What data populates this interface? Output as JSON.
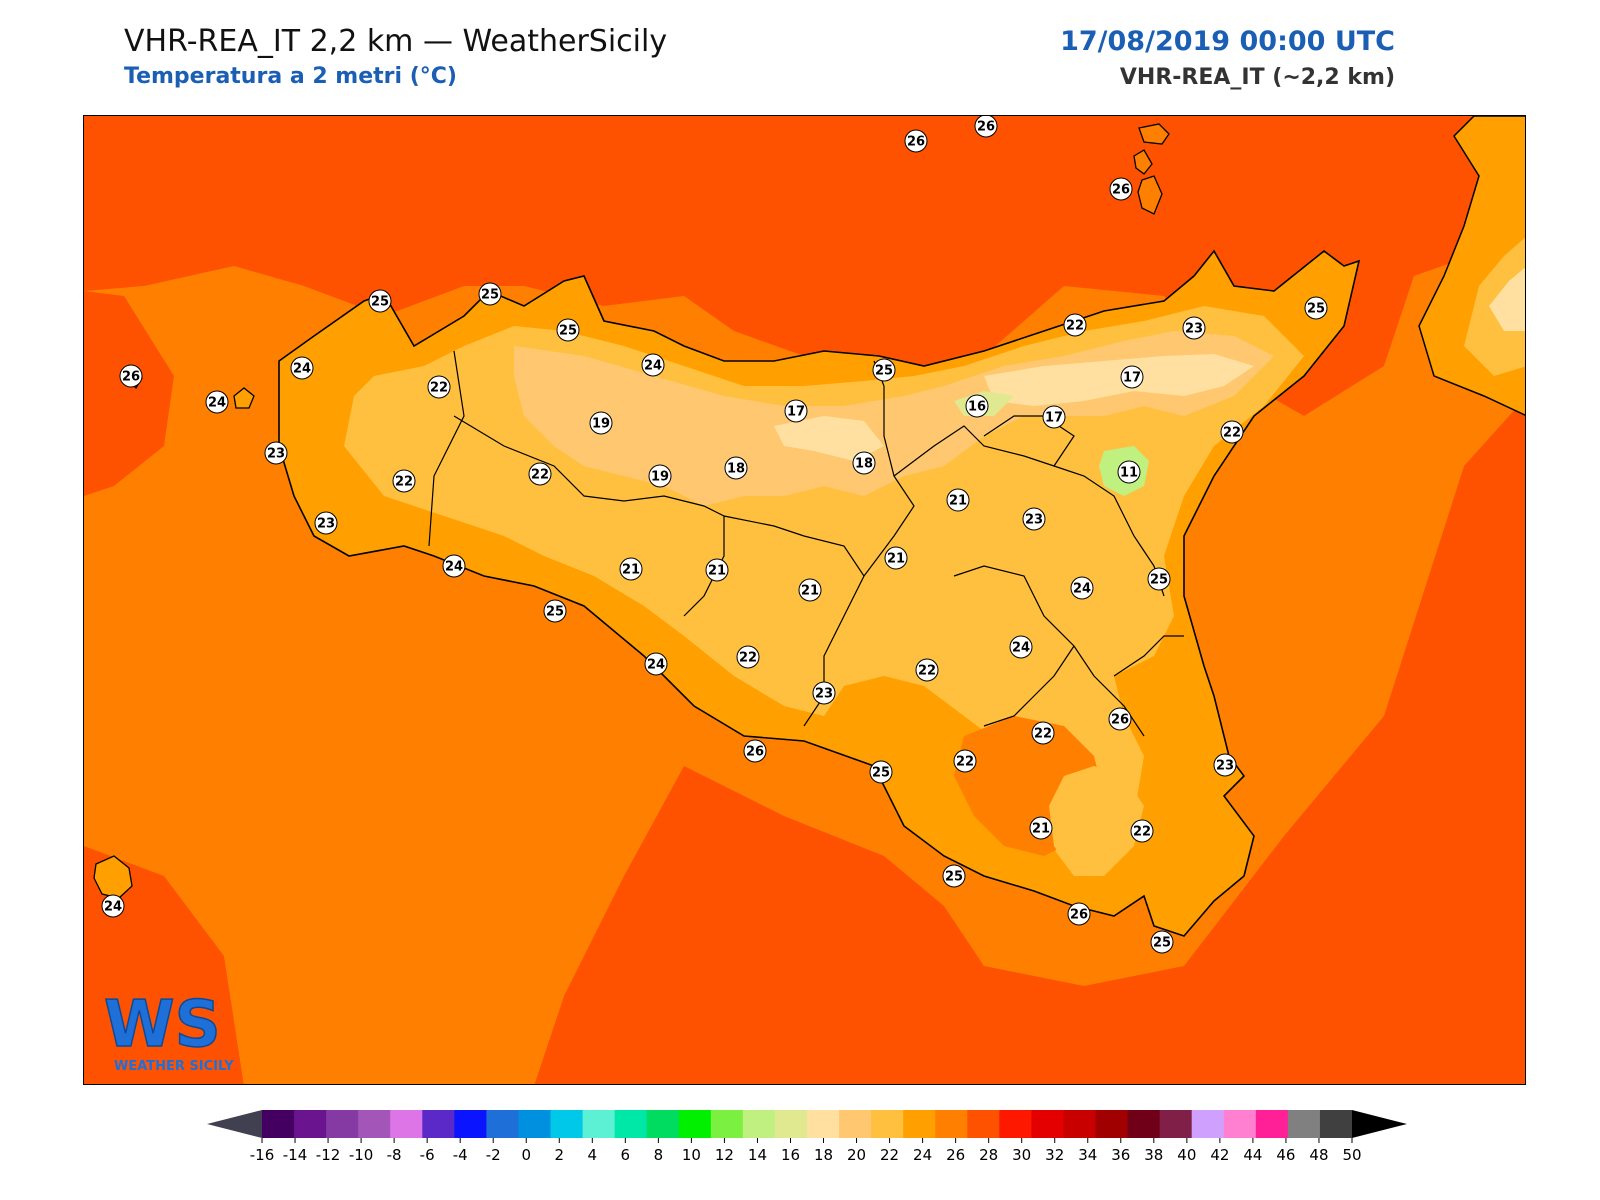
{
  "header": {
    "title": "VHR-REA_IT 2,2 km — WeatherSicily",
    "subtitle": "Temperatura a 2 metri (°C)",
    "datetime": "17/08/2019 00:00 UTC",
    "model": "VHR-REA_IT (~2,2 km)"
  },
  "logo": {
    "mark": "WS",
    "text": "WEATHER SICILY",
    "icon": "weather-sicily-logo-icon"
  },
  "colors": {
    "sea": "#ff5200",
    "land": "#ffa000",
    "ocean_warm": "#ff8000",
    "coast": "#000000"
  },
  "point_values": [
    {
      "v": "26"
    },
    {
      "v": "26"
    },
    {
      "v": "26"
    },
    {
      "v": "25"
    },
    {
      "v": "25"
    },
    {
      "v": "25"
    },
    {
      "v": "24"
    },
    {
      "v": "24"
    },
    {
      "v": "26"
    },
    {
      "v": "24"
    },
    {
      "v": "22"
    },
    {
      "v": "23"
    },
    {
      "v": "22"
    },
    {
      "v": "23"
    },
    {
      "v": "19"
    },
    {
      "v": "22"
    },
    {
      "v": "19"
    },
    {
      "v": "17"
    },
    {
      "v": "18"
    },
    {
      "v": "18"
    },
    {
      "v": "25"
    },
    {
      "v": "22"
    },
    {
      "v": "23"
    },
    {
      "v": "25"
    },
    {
      "v": "16"
    },
    {
      "v": "17"
    },
    {
      "v": "17"
    },
    {
      "v": "11"
    },
    {
      "v": "22"
    },
    {
      "v": "21"
    },
    {
      "v": "23"
    },
    {
      "v": "21"
    },
    {
      "v": "21"
    },
    {
      "v": "21"
    },
    {
      "v": "21"
    },
    {
      "v": "24"
    },
    {
      "v": "25"
    },
    {
      "v": "24"
    },
    {
      "v": "24"
    },
    {
      "v": "24"
    },
    {
      "v": "22"
    },
    {
      "v": "23"
    },
    {
      "v": "22"
    },
    {
      "v": "25"
    },
    {
      "v": "22"
    },
    {
      "v": "22"
    },
    {
      "v": "26"
    },
    {
      "v": "26"
    },
    {
      "v": "25"
    },
    {
      "v": "23"
    },
    {
      "v": "21"
    },
    {
      "v": "22"
    },
    {
      "v": "25"
    },
    {
      "v": "26"
    },
    {
      "v": "25"
    },
    {
      "v": "24"
    }
  ],
  "colorbar": {
    "ticks": [
      "-16",
      "-14",
      "-12",
      "-10",
      "-8",
      "-6",
      "-4",
      "-2",
      "0",
      "2",
      "4",
      "6",
      "8",
      "10",
      "12",
      "14",
      "16",
      "18",
      "20",
      "22",
      "24",
      "26",
      "28",
      "30",
      "32",
      "34",
      "36",
      "38",
      "40",
      "42",
      "44",
      "46",
      "48",
      "50"
    ],
    "colors": [
      "#430060",
      "#6a1490",
      "#843aa2",
      "#a356b8",
      "#dd75e6",
      "#5b29c8",
      "#0a14ff",
      "#1e6fd8",
      "#0090e0",
      "#00c8e8",
      "#5cf0d4",
      "#00e8a8",
      "#00dc60",
      "#00f000",
      "#7cf040",
      "#c0f080",
      "#e0e890",
      "#ffe0a0",
      "#ffc870",
      "#ffc040",
      "#ffa000",
      "#ff8000",
      "#ff5200",
      "#ff1800",
      "#e40000",
      "#c80000",
      "#a00000",
      "#700018",
      "#802048",
      "#d0a0ff",
      "#ff80d0",
      "#ff2098",
      "#808080",
      "#404040"
    ],
    "under_color": "#404050",
    "over_color": "#000000"
  }
}
